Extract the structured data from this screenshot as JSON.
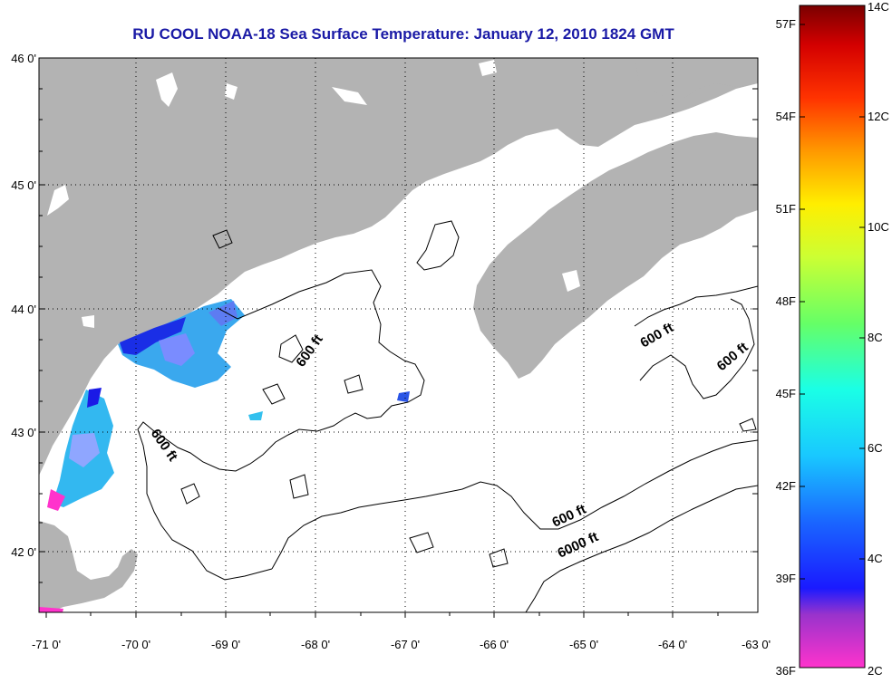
{
  "title": "RU COOL  NOAA-18  Sea Surface Temperature:  January 12, 2010 1824 GMT",
  "map": {
    "lat_labels": [
      "46 0'",
      "45 0'",
      "44 0'",
      "43 0'",
      "42 0'"
    ],
    "lon_labels": [
      "-71 0'",
      "-70 0'",
      "-69 0'",
      "-68 0'",
      "-67 0'",
      "-66 0'",
      "-65 0'",
      "-64 0'",
      "-63 0'"
    ],
    "contour_labels": {
      "c1": "600 ft",
      "c2": "600 ft",
      "c3": "600 ft",
      "c4": "600 ft",
      "c5": "600 ft",
      "c6": "6000 ft"
    },
    "colors": {
      "land": "#b3b3b3",
      "sea": "#ffffff",
      "grid": "#000000"
    }
  },
  "colorbar": {
    "fahrenheit": [
      "57F",
      "54F",
      "51F",
      "48F",
      "45F",
      "42F",
      "39F",
      "36F"
    ],
    "celsius": [
      "14C",
      "12C",
      "10C",
      "8C",
      "6C",
      "4C",
      "2C"
    ],
    "range_c": [
      2,
      14
    ]
  }
}
